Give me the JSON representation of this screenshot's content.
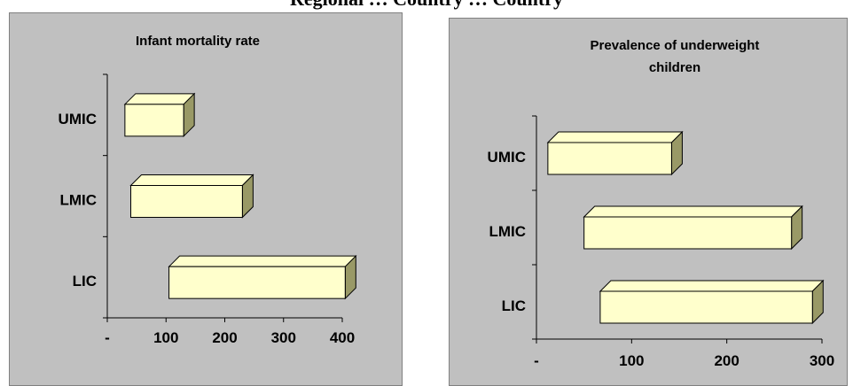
{
  "header": {
    "caption": "Regional … Country … Country"
  },
  "chart_data": [
    {
      "type": "bar",
      "orientation": "horizontal",
      "style": "3d-floating-bar",
      "title": "Infant mortality rate",
      "categories": [
        "UMIC",
        "LMIC",
        "LIC"
      ],
      "ranges": [
        [
          30,
          130
        ],
        [
          40,
          230
        ],
        [
          105,
          405
        ]
      ],
      "xticks": [
        "-",
        "100",
        "200",
        "300",
        "400"
      ],
      "xlim": [
        0,
        400
      ],
      "grid": false,
      "bar_color": "#ffffcc",
      "side_color": "#999966"
    },
    {
      "type": "bar",
      "orientation": "horizontal",
      "style": "3d-floating-bar",
      "title": "Prevalence of underweight children",
      "categories": [
        "UMIC",
        "LMIC",
        "LIC"
      ],
      "ranges": [
        [
          12,
          142
        ],
        [
          50,
          268
        ],
        [
          67,
          290
        ]
      ],
      "xticks": [
        "-",
        "100",
        "200",
        "300"
      ],
      "xlim": [
        0,
        300
      ],
      "grid": false,
      "bar_color": "#ffffcc",
      "side_color": "#999966"
    }
  ]
}
